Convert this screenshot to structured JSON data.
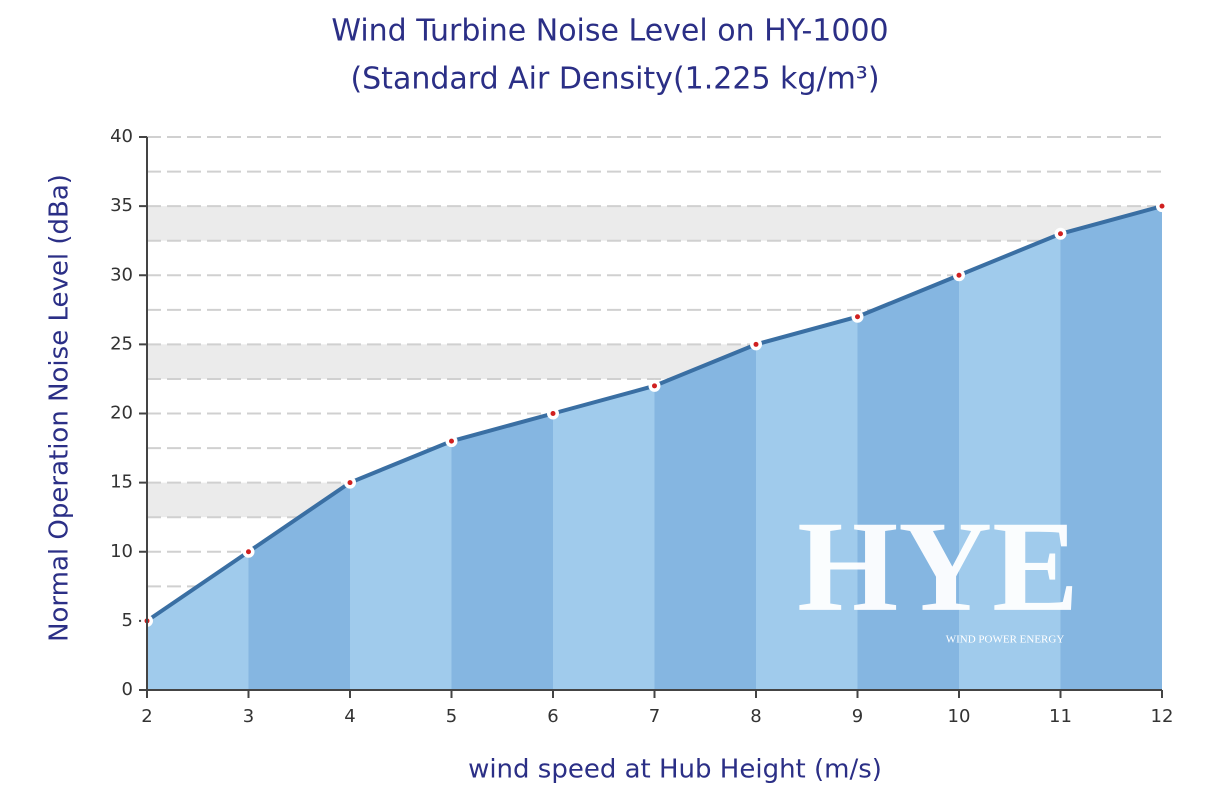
{
  "chart_data": {
    "type": "area",
    "title": "Wind Turbine Noise Level on HY-1000",
    "subtitle": "(Standard Air Density(1.225 kg/m³)",
    "y_label": "Normal Operation Noise  Level (dBa)",
    "x_label": "wind speed at Hub Height  (m/s)",
    "x": [
      2,
      3,
      4,
      5,
      6,
      7,
      8,
      9,
      10,
      11,
      12
    ],
    "values": [
      5,
      10,
      15,
      18,
      20,
      22,
      25,
      27,
      30,
      33,
      35
    ],
    "color": "#3a6fa3",
    "fill_colors": [
      "#a0cbec",
      "#85b6e1"
    ],
    "xlim": [
      2,
      12
    ],
    "ylim": [
      0,
      40
    ],
    "xticks": [
      2,
      3,
      4,
      5,
      6,
      7,
      8,
      9,
      10,
      11,
      12
    ],
    "yticks": [
      0,
      5,
      10,
      15,
      20,
      25,
      30,
      35,
      40
    ],
    "grid": true,
    "watermark": {
      "text": "HYE",
      "subtext": "WIND POWER ENERGY"
    }
  }
}
